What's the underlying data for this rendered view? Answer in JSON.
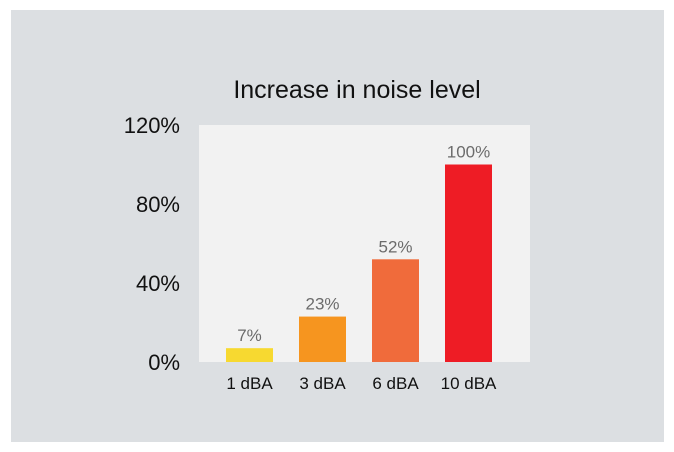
{
  "chart_data": {
    "type": "bar",
    "title": "Increase in noise level",
    "categories": [
      "1 dBA",
      "3 dBA",
      "6 dBA",
      "10 dBA"
    ],
    "values": [
      7,
      23,
      52,
      100
    ],
    "data_labels": [
      "7%",
      "23%",
      "52%",
      "100%"
    ],
    "bar_colors": [
      "#f7d930",
      "#f6951f",
      "#f06b3b",
      "#ee1c25"
    ],
    "yticks": [
      0,
      40,
      80,
      120
    ],
    "ytick_labels": [
      "0%",
      "40%",
      "80%",
      "120%"
    ],
    "ylim": [
      0,
      120
    ],
    "grid": false,
    "legend": "none",
    "plot_background": "#f2f2f2",
    "card_background": "#dcdfe2"
  }
}
